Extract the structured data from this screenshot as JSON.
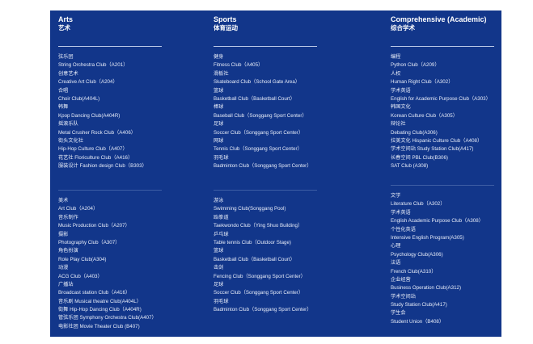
{
  "columns": [
    {
      "title_en": "Arts",
      "title_cn": "艺术",
      "groups": [
        [
          "弦乐团",
          "String Orchestra Club（A201）",
          "创意艺术",
          "Creative Art Club（A204）",
          "合唱",
          "Choir Club(A404L)",
          "韩舞",
          "Kpop Dancing Club(A404R)",
          "摇滚乐队",
          "Metal Crusher Rock Club（A406）",
          "街头文化社",
          "Hip-Hop Culture Club（A407）",
          "花艺社 Floriculture Club（A416）",
          "服装设计 Fashion design Club（B303）"
        ],
        [
          "美术",
          "Art Club（A204）",
          "音乐制作",
          "Music Production Club（A207）",
          "摄影",
          "Photography Club（A307）",
          "角色扮演",
          "Role Play Club(A304)",
          "动漫",
          "ACG Club（A403）",
          "广播站",
          "Broadcast station Club（A416）",
          "音乐剧 Musical theatre Club(A404L）",
          "街舞 Hip-Hop Dancing Club（A404R)",
          "管弦乐团 Symphony Orchestra Club(A407）",
          "电影社团 Movie Theater Club (B407)"
        ]
      ]
    },
    {
      "title_en": "Sports",
      "title_cn": "体育运动",
      "groups": [
        [
          "健身",
          "Fitness Club（A405）",
          "滑板社",
          "Skateboard Club（School Gate Area）",
          "篮球",
          "Basketball Club（Basketball Court）",
          "棒球",
          "Baseball Club（Songgang Sport Center）",
          "足球",
          "Soccer Club（Songgang Sport Center）",
          "网球",
          "Tennis Club（Songgang Sport Center）",
          "羽毛球",
          "Badminton Club（Songgang Sport Center）"
        ],
        [
          "游泳",
          "Swimming Club(Songgang Pool)",
          "跆拳道",
          "Taekwondo Club（Ying Shuo Building）",
          "乒乓球",
          "Table tennis Club（Outdoor Stage)",
          "篮球",
          "Basketball Club（Basketball Court）",
          "击剑",
          "Fencing Club（Songgang Sport Center）",
          "足球",
          "Soccer Club（Songgang Sport Center）",
          "羽毛球",
          "Badminton Club（Songgang Sport Center）"
        ]
      ]
    },
    {
      "title_en": "Comprehensive (Academic)",
      "title_cn": "综合学术",
      "groups": [
        [
          "编程",
          "Python Club（A209）",
          "人权",
          "Human Right Club（A302）",
          "学术英语",
          "English for Academic Purpose Club（A303）",
          "韩国文化",
          "Korean Culture Club（A305）",
          "辩论社",
          "Debating Club(A306)",
          "拉美文化 Hispanic Culture Club（A408）",
          "学术空间站 Study Station Club(A417)",
          "长春空间 PBL Club(B306)",
          "SAT Club (A308)"
        ],
        [
          "文学",
          "Literature Club（A302）",
          "学术英语",
          "English Academic Purpose Club（A308）",
          "个性化英语",
          "Intensive English Program(A305)",
          "心理",
          "Psychology Club(A306)",
          "法语",
          "French Club(A310）",
          "企业经营",
          "Business Operation Club(A312)",
          "学术空间站",
          "Study Station Club(A417)",
          "学生会",
          "Student Union（B408）"
        ]
      ]
    }
  ]
}
